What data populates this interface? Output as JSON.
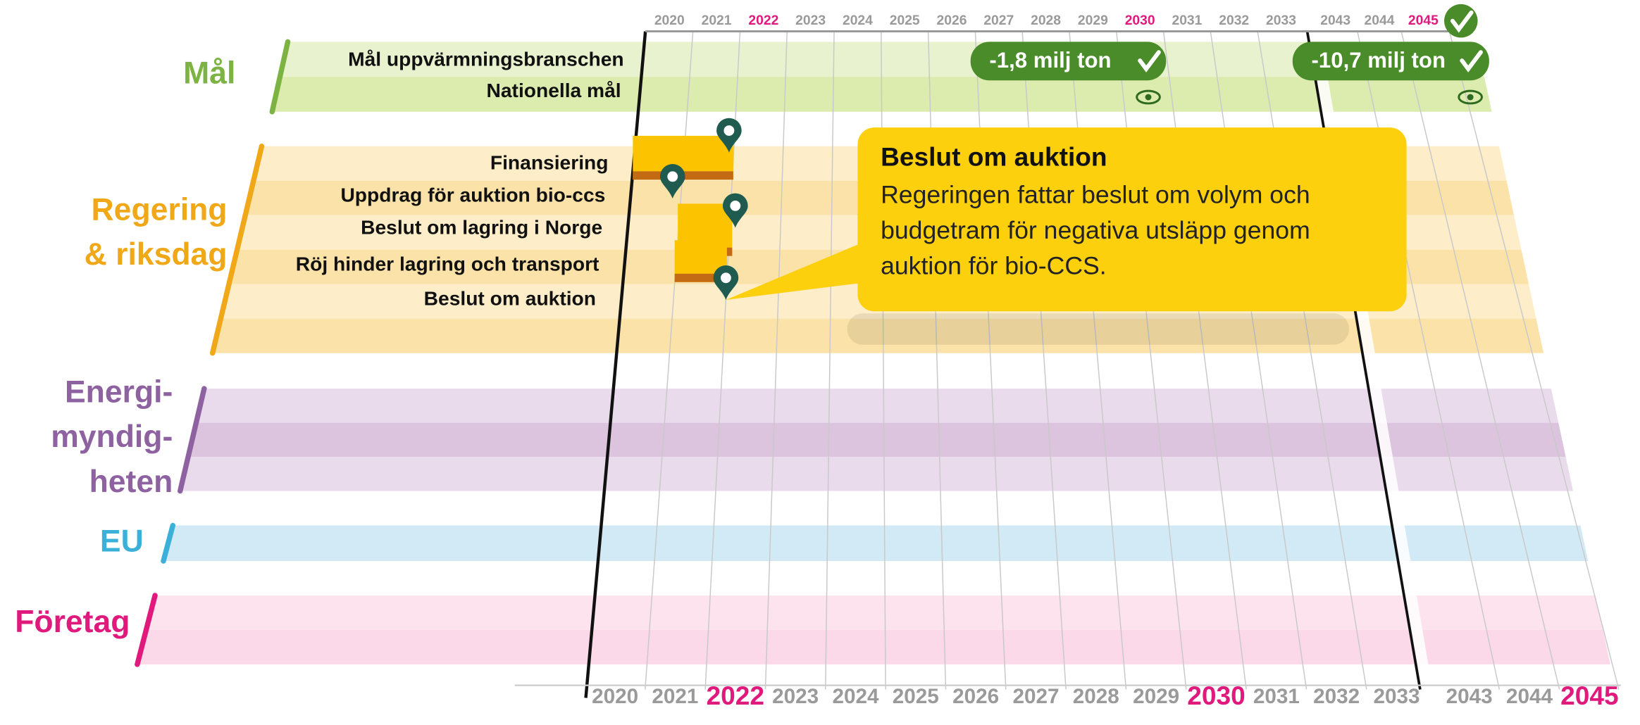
{
  "years": [
    {
      "label": "2020"
    },
    {
      "label": "2021"
    },
    {
      "label": "2022",
      "highlight": true
    },
    {
      "label": "2023"
    },
    {
      "label": "2024"
    },
    {
      "label": "2025"
    },
    {
      "label": "2026"
    },
    {
      "label": "2027"
    },
    {
      "label": "2028"
    },
    {
      "label": "2029"
    },
    {
      "label": "2030",
      "highlight": true
    },
    {
      "label": "2031"
    },
    {
      "label": "2032"
    },
    {
      "label": "2033"
    },
    {
      "label": "2043"
    },
    {
      "label": "2044"
    },
    {
      "label": "2045",
      "highlight": true
    }
  ],
  "highlight_color": "#e0197d",
  "groups": [
    {
      "label_lines": [
        "Mål"
      ],
      "color": "#7cb342",
      "band_colors": [
        "#e9f2cf",
        "#dcebae"
      ],
      "rows": [
        "Mål uppvärmningsbranschen",
        "Nationella mål"
      ]
    },
    {
      "label_lines": [
        "Regering",
        "& riksdag"
      ],
      "color": "#f0a818",
      "band_colors": [
        "#fdedc8",
        "#fbe2a8"
      ],
      "rows": [
        "Finansiering",
        "Uppdrag för auktion bio-ccs",
        "Beslut om lagring i Norge",
        "Röj hinder lagring och transport",
        "Beslut om auktion"
      ]
    },
    {
      "label_lines": [
        "Energi-",
        "myndig-",
        "heten"
      ],
      "color": "#8e62a0",
      "band_colors": [
        "#eadbec",
        "#dcc4df"
      ],
      "rows": []
    },
    {
      "label_lines": [
        "EU"
      ],
      "color": "#3bb0d8",
      "band_colors": [
        "#d2eaf5"
      ],
      "rows": []
    },
    {
      "label_lines": [
        "Företag"
      ],
      "color": "#e0197d",
      "band_colors": [
        "#fde3ee",
        "#fbd9e8"
      ],
      "rows": []
    }
  ],
  "goals": [
    {
      "label": "-1,8 milj ton"
    },
    {
      "label": "-10,7 milj ton"
    }
  ],
  "callout": {
    "title": "Beslut om auktion",
    "lines": [
      "Regeringen fattar beslut om volym och",
      "budgetram för negativa utsläpp genom",
      "auktion för bio-CCS."
    ]
  }
}
